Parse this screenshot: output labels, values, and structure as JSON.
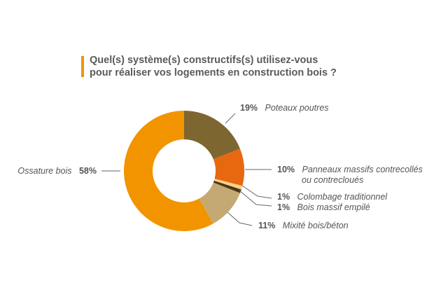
{
  "title": {
    "line1": "Quel(s) système(s) constructifs(s) utilisez-vous",
    "line2": "pour réaliser vos logements en construction bois ?"
  },
  "colors": {
    "accent": "#f29400"
  },
  "chart_data": {
    "type": "pie",
    "variant": "donut",
    "title": "Quel(s) système(s) constructifs(s) utilisez-vous pour réaliser vos logements en construction bois ?",
    "slices": [
      {
        "label": "Poteaux poutres",
        "value": 19,
        "pct_label": "19%",
        "color": "#7e6630"
      },
      {
        "label": "Panneaux massifs contrecollés ou contrecloués",
        "value": 10,
        "pct_label": "10%",
        "color": "#e8680f"
      },
      {
        "label": "Colombage traditionnel",
        "value": 1,
        "pct_label": "1%",
        "color": "#f7d48a"
      },
      {
        "label": "Bois massif empilé",
        "value": 1,
        "pct_label": "1%",
        "color": "#4a3818"
      },
      {
        "label": "Mixité bois/béton",
        "value": 11,
        "pct_label": "11%",
        "color": "#c4aa72"
      },
      {
        "label": "Ossature bois",
        "value": 58,
        "pct_label": "58%",
        "color": "#f29400"
      }
    ]
  }
}
